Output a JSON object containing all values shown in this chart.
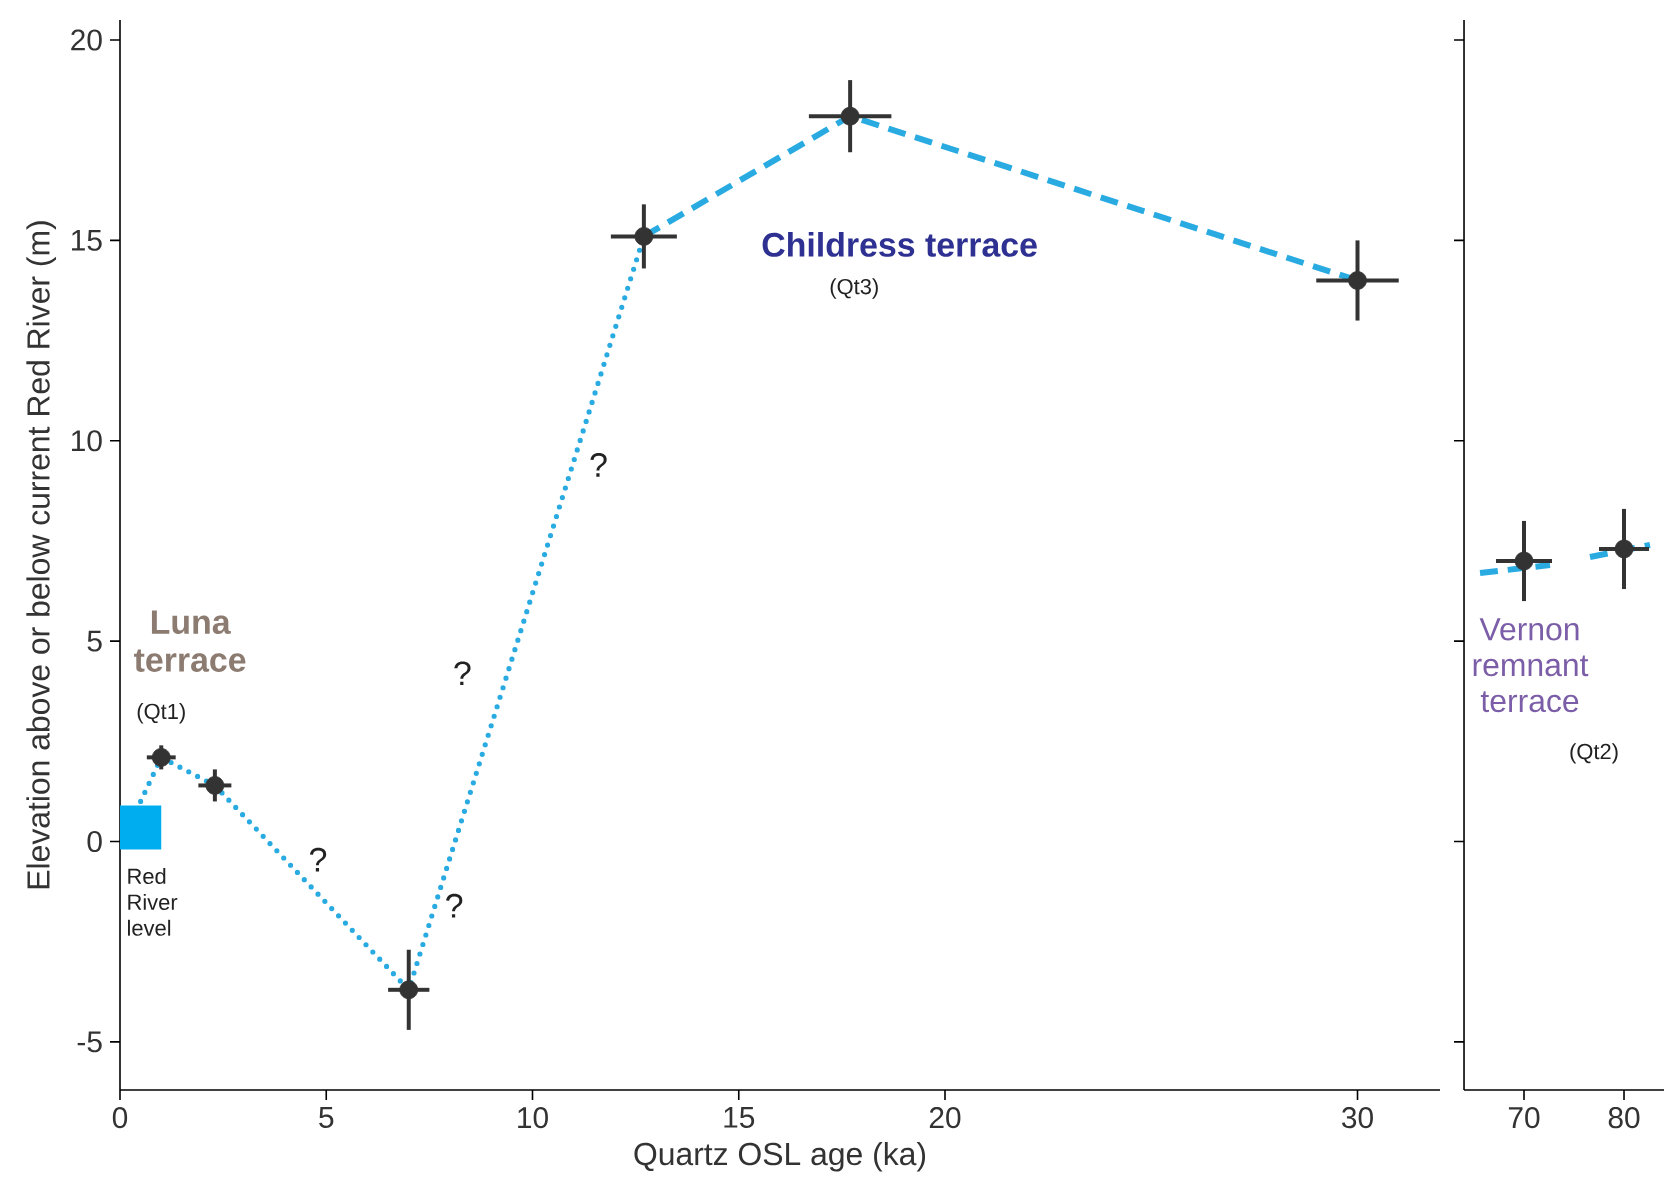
{
  "chart_data": [
    {
      "type": "scatter",
      "xlabel": "Quartz OSL age (ka)",
      "ylabel": "Elevation above or below current Red River (m)",
      "xlim": [
        0,
        32
      ],
      "ylim": [
        -6.2,
        20.5
      ],
      "xticks": [
        0,
        5,
        10,
        15,
        20,
        30
      ],
      "yticks": [
        -5,
        0,
        5,
        10,
        15,
        20
      ],
      "series": [
        {
          "type": "line",
          "color": "#00aeef",
          "x": [
            0,
            1
          ],
          "values": [
            0.35,
            0.35
          ],
          "line_style": "solid",
          "marker": "none"
        },
        {
          "type": "line",
          "color": "#29abe2",
          "x": [
            0.5,
            1.0,
            2.3,
            7.0,
            12.7
          ],
          "values": [
            1.0,
            2.1,
            1.4,
            -3.7,
            15.1
          ],
          "line_style": "dotted",
          "marker": "none"
        },
        {
          "type": "line",
          "color": "#29abe2",
          "x": [
            12.7,
            17.7,
            30
          ],
          "values": [
            15.1,
            18.1,
            14.0
          ],
          "line_style": "dashed",
          "marker": "none"
        },
        {
          "color": "#333333",
          "marker": "circle",
          "x": [
            1.0,
            2.3,
            7.0,
            12.7,
            17.7,
            30
          ],
          "values": [
            2.1,
            1.4,
            -3.7,
            15.1,
            18.1,
            14.0
          ],
          "errors": [
            0.3,
            0.4,
            1.0,
            0.8,
            0.9,
            1.0
          ],
          "xerrors": [
            0.35,
            0.4,
            0.5,
            0.8,
            1.0,
            1.0
          ]
        }
      ],
      "annotations": [
        "Luna terrace",
        "(Qt1)",
        "Red River level",
        "?",
        "?",
        "?",
        "?",
        "Childress terrace",
        "(Qt3)"
      ]
    },
    {
      "type": "scatter",
      "xlim": [
        64,
        84
      ],
      "ylim": [
        -6.2,
        20.5
      ],
      "xticks": [
        70,
        80
      ],
      "yticks": [
        -5,
        0,
        5,
        10,
        15,
        20
      ],
      "tick_labels": "x",
      "series": [
        {
          "type": "line",
          "color": "#29abe2",
          "x": [
            65.6,
            72.6
          ],
          "values": [
            6.7,
            6.9
          ],
          "line_style": "dashed",
          "marker": "none"
        },
        {
          "type": "line",
          "color": "#29abe2",
          "x": [
            76.6,
            82.6
          ],
          "values": [
            7.1,
            7.4
          ],
          "line_style": "dashed",
          "marker": "none"
        },
        {
          "color": "#333333",
          "marker": "circle",
          "x": [
            70,
            80
          ],
          "values": [
            7.0,
            7.3
          ],
          "errors": [
            1.0,
            1.0
          ],
          "xerrors": [
            2.8,
            2.5
          ]
        }
      ],
      "annotations": [
        "Vernon remnant terrace",
        "(Qt2)"
      ]
    }
  ]
}
